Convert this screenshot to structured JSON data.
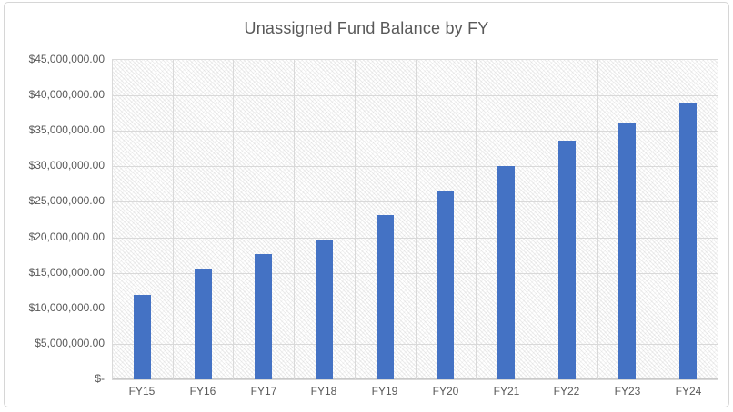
{
  "chart_data": {
    "type": "bar",
    "title": "Unassigned Fund Balance by FY",
    "categories": [
      "FY15",
      "FY16",
      "FY17",
      "FY18",
      "FY19",
      "FY20",
      "FY21",
      "FY22",
      "FY23",
      "FY24"
    ],
    "series": [
      {
        "name": "Unassigned Fund Balance",
        "values": [
          11900000,
          15600000,
          17600000,
          19700000,
          23200000,
          26500000,
          30000000,
          33600000,
          36000000,
          38800000
        ]
      }
    ],
    "xlabel": "",
    "ylabel": "",
    "ylim": [
      0,
      45000000
    ],
    "y_tick_step": 5000000,
    "y_tick_labels_top_to_bottom": [
      "$45,000,000.00",
      "$40,000,000.00",
      "$35,000,000.00",
      "$30,000,000.00",
      "$25,000,000.00",
      "$20,000,000.00",
      "$15,000,000.00",
      "$10,000,000.00",
      "$5,000,000.00",
      "$-"
    ],
    "legend_position": "none",
    "grid": "horizontal-and-vertical",
    "plot_area_fill": "light-diagonal-hatch-pattern",
    "colors": {
      "bar": "#4472C4",
      "gridline": "#d9d9d9",
      "axis_line": "#c9c9c9",
      "axis_label": "#595959",
      "title": "#595959",
      "chart_border": "#d6d6d6",
      "background": "#ffffff"
    }
  }
}
